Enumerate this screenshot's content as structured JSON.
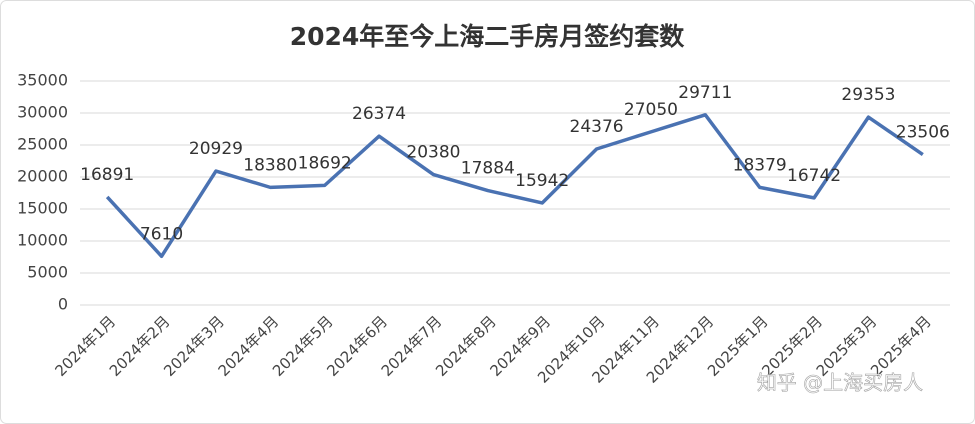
{
  "chart_data": {
    "type": "line",
    "title": "2024年至今上海二手房月签约套数",
    "categories": [
      "2024年1月",
      "2024年2月",
      "2024年3月",
      "2024年4月",
      "2024年5月",
      "2024年6月",
      "2024年7月",
      "2024年8月",
      "2024年9月",
      "2024年10月",
      "2024年11月",
      "2024年12月",
      "2025年1月",
      "2025年2月",
      "2025年3月",
      "2025年4月"
    ],
    "series": [
      {
        "name": "签约套数",
        "color": "#4a72b2",
        "values": [
          16891,
          7610,
          20929,
          18380,
          18692,
          26374,
          20380,
          17884,
          15942,
          24376,
          27050,
          29711,
          18379,
          16742,
          29353,
          23506
        ]
      }
    ],
    "ylim": [
      0,
      35000
    ],
    "yticks": [
      0,
      5000,
      10000,
      15000,
      20000,
      25000,
      30000,
      35000
    ],
    "grid": true,
    "watermark": "知乎 @上海买房人"
  }
}
